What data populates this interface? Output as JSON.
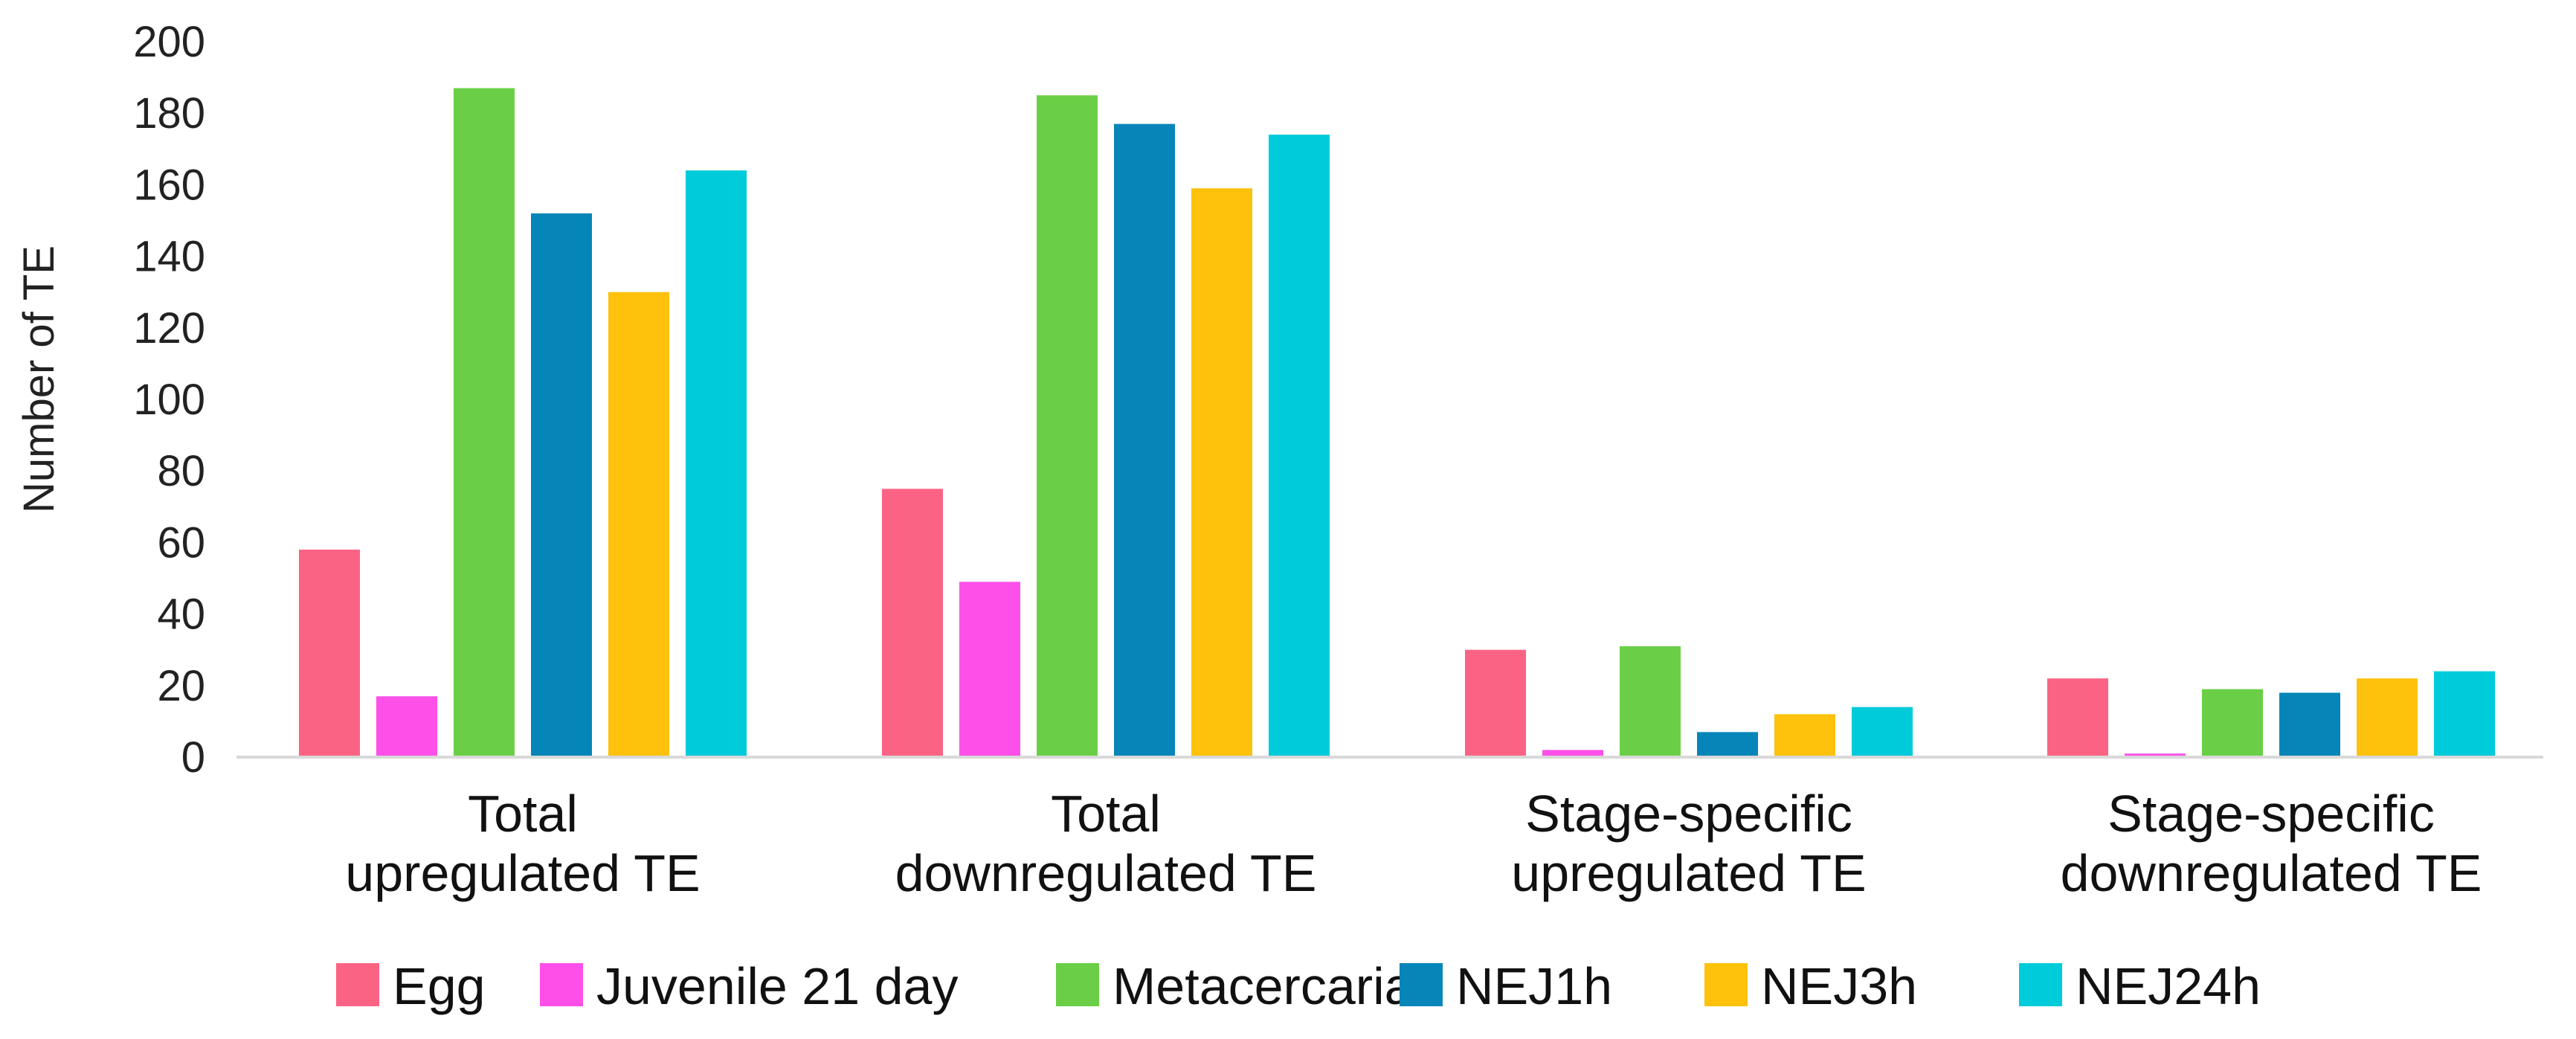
{
  "chart_data": {
    "type": "bar",
    "title": "",
    "xlabel": "",
    "ylabel": "Number of TE",
    "ylim": [
      0,
      200
    ],
    "yticks": [
      0,
      20,
      40,
      60,
      80,
      100,
      120,
      140,
      160,
      180,
      200
    ],
    "grid": false,
    "legend_position": "bottom",
    "categories": [
      "Total upregulated TE",
      "Total downregulated TE",
      "Stage-specific upregulated TE",
      "Stage-specific downregulated TE"
    ],
    "category_lines": [
      [
        "Total",
        "upregulated TE"
      ],
      [
        "Total",
        "downregulated TE"
      ],
      [
        "Stage-specific",
        "upregulated TE"
      ],
      [
        "Stage-specific",
        "downregulated TE"
      ]
    ],
    "series": [
      {
        "name": "Egg",
        "color": "#fb6384",
        "values": [
          58,
          75,
          30,
          22
        ]
      },
      {
        "name": "Juvenile 21 day",
        "color": "#fe4fe8",
        "values": [
          17,
          49,
          2,
          1
        ]
      },
      {
        "name": "Metacercaria",
        "color": "#6acf46",
        "values": [
          187,
          185,
          31,
          19
        ]
      },
      {
        "name": "NEJ1h",
        "color": "#0585b8",
        "values": [
          152,
          177,
          7,
          18
        ]
      },
      {
        "name": "NEJ3h",
        "color": "#fec10c",
        "values": [
          130,
          159,
          12,
          22
        ]
      },
      {
        "name": "NEJ24h",
        "color": "#00cbda",
        "values": [
          164,
          174,
          14,
          24
        ]
      }
    ]
  }
}
